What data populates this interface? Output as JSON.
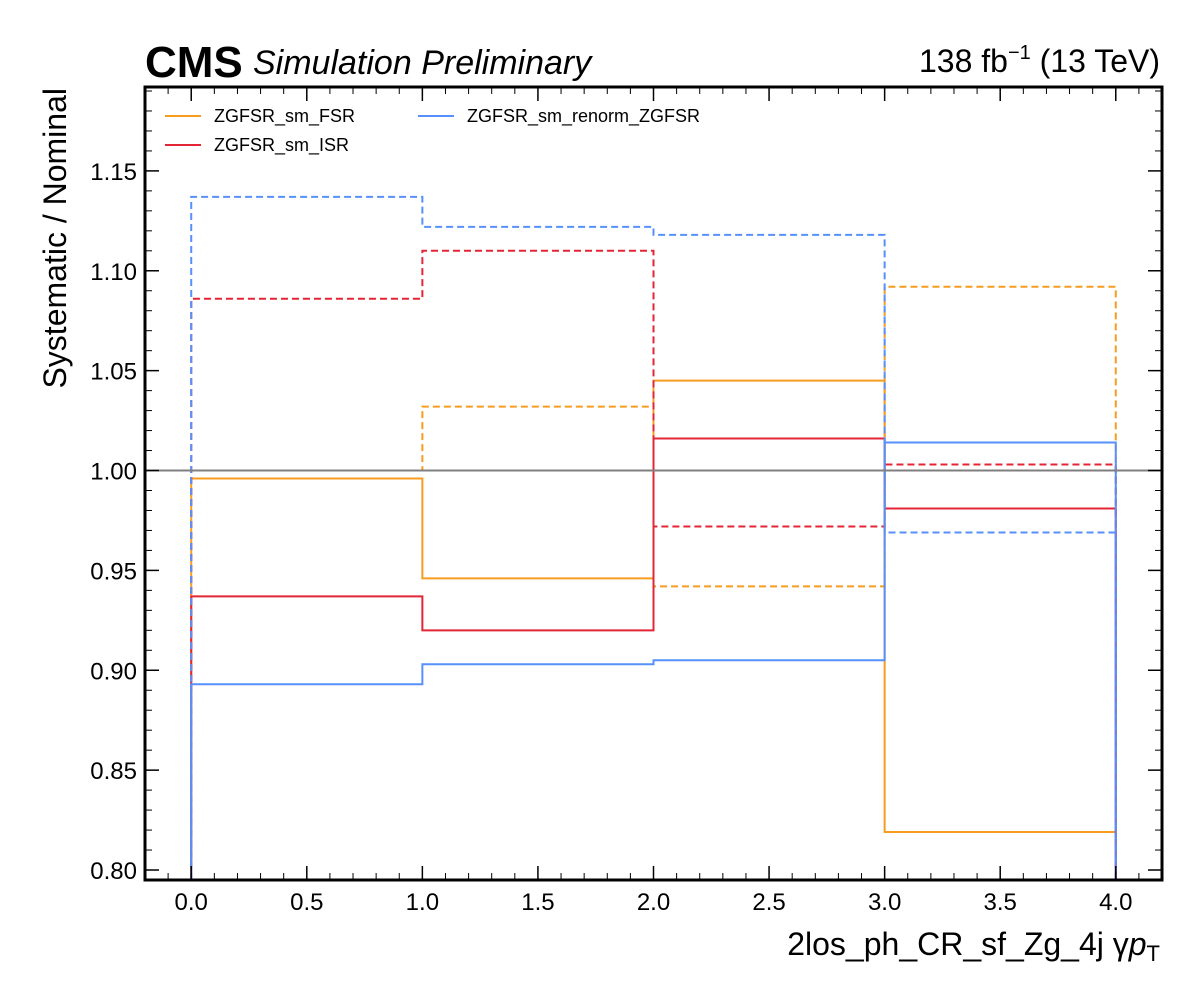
{
  "header": {
    "experiment": "CMS",
    "status": "Simulation Preliminary",
    "lumi": "138 fb",
    "lumi_sup": "−1",
    "energy": " (13 TeV)"
  },
  "chart_data": {
    "type": "line",
    "xlabel": "2los_ph_CR_sf_Zg_4j   γ",
    "xlabel_p": "p",
    "xlabel_sub": "T",
    "ylabel": "Systematic / Nominal",
    "xlim": [
      -0.2,
      4.2
    ],
    "ylim": [
      0.795,
      1.192
    ],
    "xticks": [
      0.0,
      0.5,
      1.0,
      1.5,
      2.0,
      2.5,
      3.0,
      3.5,
      4.0
    ],
    "xtick_labels": [
      "0.0",
      "0.5",
      "1.0",
      "1.5",
      "2.0",
      "2.5",
      "3.0",
      "3.5",
      "4.0"
    ],
    "yticks": [
      0.8,
      0.85,
      0.9,
      0.95,
      1.0,
      1.05,
      1.1,
      1.15
    ],
    "ytick_labels": [
      "0.80",
      "0.85",
      "0.90",
      "0.95",
      "1.00",
      "1.05",
      "1.10",
      "1.15"
    ],
    "reference_line": 1.0,
    "reference_color": "#7f7f7f",
    "bin_edges": [
      0,
      1,
      2,
      3,
      4
    ],
    "legend_position": "top-left",
    "grid": false,
    "series": [
      {
        "name": "ZGFSR_sm_FSR",
        "color": "#f89c20",
        "up": [
          1.0,
          1.032,
          0.942,
          1.092
        ],
        "down": [
          0.996,
          0.946,
          1.045,
          0.819
        ]
      },
      {
        "name": "ZGFSR_sm_ISR",
        "color": "#e42536",
        "up": [
          1.086,
          1.11,
          0.972,
          1.003
        ],
        "down": [
          0.937,
          0.92,
          1.016,
          0.981
        ]
      },
      {
        "name": "ZGFSR_sm_renorm_ZGFSR",
        "color": "#5790fc",
        "up": [
          1.137,
          1.122,
          1.118,
          0.969
        ],
        "down": [
          0.893,
          0.903,
          0.905,
          1.014
        ]
      }
    ]
  }
}
